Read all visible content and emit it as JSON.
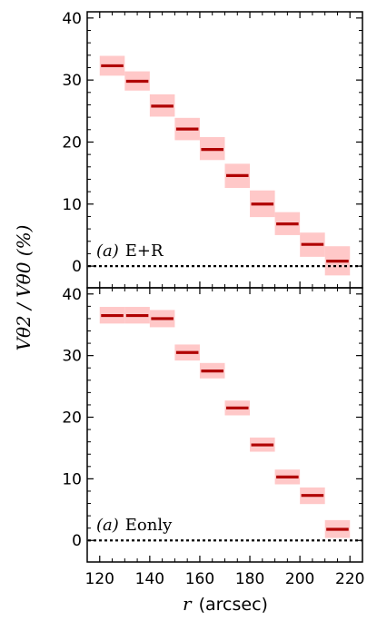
{
  "chart_data": {
    "type": "bar",
    "xlabel_var": "r",
    "xlabel_unit": "(arcsec)",
    "ylabel": "Vθ2 / Vθ0 (%)",
    "xlim": [
      115,
      225
    ],
    "xticks": [
      120,
      140,
      160,
      180,
      200,
      220
    ],
    "ylim": [
      -3.5,
      41
    ],
    "yticks": [
      0,
      10,
      20,
      30,
      40
    ],
    "grid": false,
    "bin_width": 10,
    "error_color": "#ffc8c8",
    "line_color": "#b00000",
    "reference_line": 0,
    "panels": [
      {
        "label_prefix": "(a)",
        "label_text": "E+R",
        "x": [
          125,
          135,
          145,
          155,
          165,
          175,
          185,
          195,
          205,
          215
        ],
        "values": [
          32.3,
          29.8,
          25.8,
          22.1,
          18.8,
          14.6,
          10.0,
          6.8,
          3.5,
          0.8
        ],
        "lower": [
          30.7,
          28.3,
          24.1,
          20.3,
          17.1,
          12.6,
          7.9,
          5.0,
          1.5,
          -1.5
        ],
        "upper": [
          33.9,
          31.4,
          27.7,
          23.9,
          20.8,
          16.5,
          12.2,
          8.7,
          5.4,
          3.2
        ]
      },
      {
        "label_prefix": "(a)",
        "label_text": "Eonly",
        "x": [
          125,
          135,
          145,
          155,
          165,
          175,
          185,
          195,
          205,
          215
        ],
        "values": [
          36.5,
          36.5,
          36.0,
          30.5,
          27.5,
          21.5,
          15.5,
          10.3,
          7.3,
          1.8
        ],
        "lower": [
          35.2,
          35.2,
          34.6,
          29.2,
          26.3,
          20.3,
          14.4,
          9.1,
          5.9,
          0.4
        ],
        "upper": [
          37.9,
          37.9,
          37.4,
          31.8,
          28.8,
          22.7,
          16.7,
          11.5,
          8.6,
          3.3
        ]
      }
    ]
  }
}
